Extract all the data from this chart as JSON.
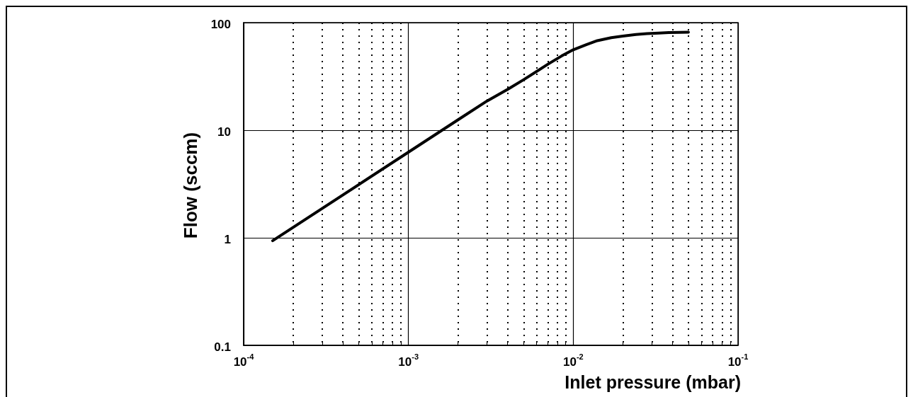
{
  "chart_data": {
    "type": "line",
    "xlabel": "Inlet pressure (mbar)",
    "ylabel": "Flow (sccm)",
    "log": "xy",
    "x": [
      0.00015,
      0.001,
      0.002,
      0.003,
      0.004,
      0.005,
      0.007,
      0.0085,
      0.01,
      0.012,
      0.014,
      0.017,
      0.02,
      0.024,
      0.028,
      0.033,
      0.038,
      0.044,
      0.05
    ],
    "series": [
      {
        "color": "#000000",
        "values": [
          0.94,
          6.25,
          12.5,
          18.7,
          24,
          29.5,
          41,
          49,
          56,
          62.5,
          68,
          72.5,
          75,
          77.5,
          79,
          80,
          81,
          81.3,
          81.5
        ]
      }
    ],
    "xlim": [
      0.0001,
      0.1
    ],
    "xticks": [
      {
        "value": 0.0001,
        "label": "10$^{-4}$"
      },
      {
        "value": 0.0002,
        "label": null
      },
      {
        "value": 0.0003,
        "label": null
      },
      {
        "value": 0.0004,
        "label": null
      },
      {
        "value": 0.0005,
        "label": null
      },
      {
        "value": 0.0006,
        "label": null
      },
      {
        "value": 0.0007,
        "label": null
      },
      {
        "value": 0.0008,
        "label": null
      },
      {
        "value": 0.0009,
        "label": null
      },
      {
        "value": 0.001,
        "label": "10$^{-3}$"
      },
      {
        "value": 0.002,
        "label": null
      },
      {
        "value": 0.003,
        "label": null
      },
      {
        "value": 0.004,
        "label": null
      },
      {
        "value": 0.005,
        "label": null
      },
      {
        "value": 0.006,
        "label": null
      },
      {
        "value": 0.007,
        "label": null
      },
      {
        "value": 0.008,
        "label": null
      },
      {
        "value": 0.009,
        "label": null
      },
      {
        "value": 0.01,
        "label": "10$^{-2}$"
      },
      {
        "value": 0.02,
        "label": null
      },
      {
        "value": 0.03,
        "label": null
      },
      {
        "value": 0.04,
        "label": null
      },
      {
        "value": 0.05,
        "label": null
      },
      {
        "value": 0.06,
        "label": null
      },
      {
        "value": 0.07,
        "label": null
      },
      {
        "value": 0.08,
        "label": null
      },
      {
        "value": 0.09,
        "label": null
      },
      {
        "value": 0.1,
        "label": "10$^{-1}$"
      }
    ],
    "ylim": [
      0.1,
      100
    ],
    "yticks": [
      0.1,
      1,
      10,
      100
    ],
    "grid": true,
    "marker": "none",
    "line_style": "solid"
  }
}
